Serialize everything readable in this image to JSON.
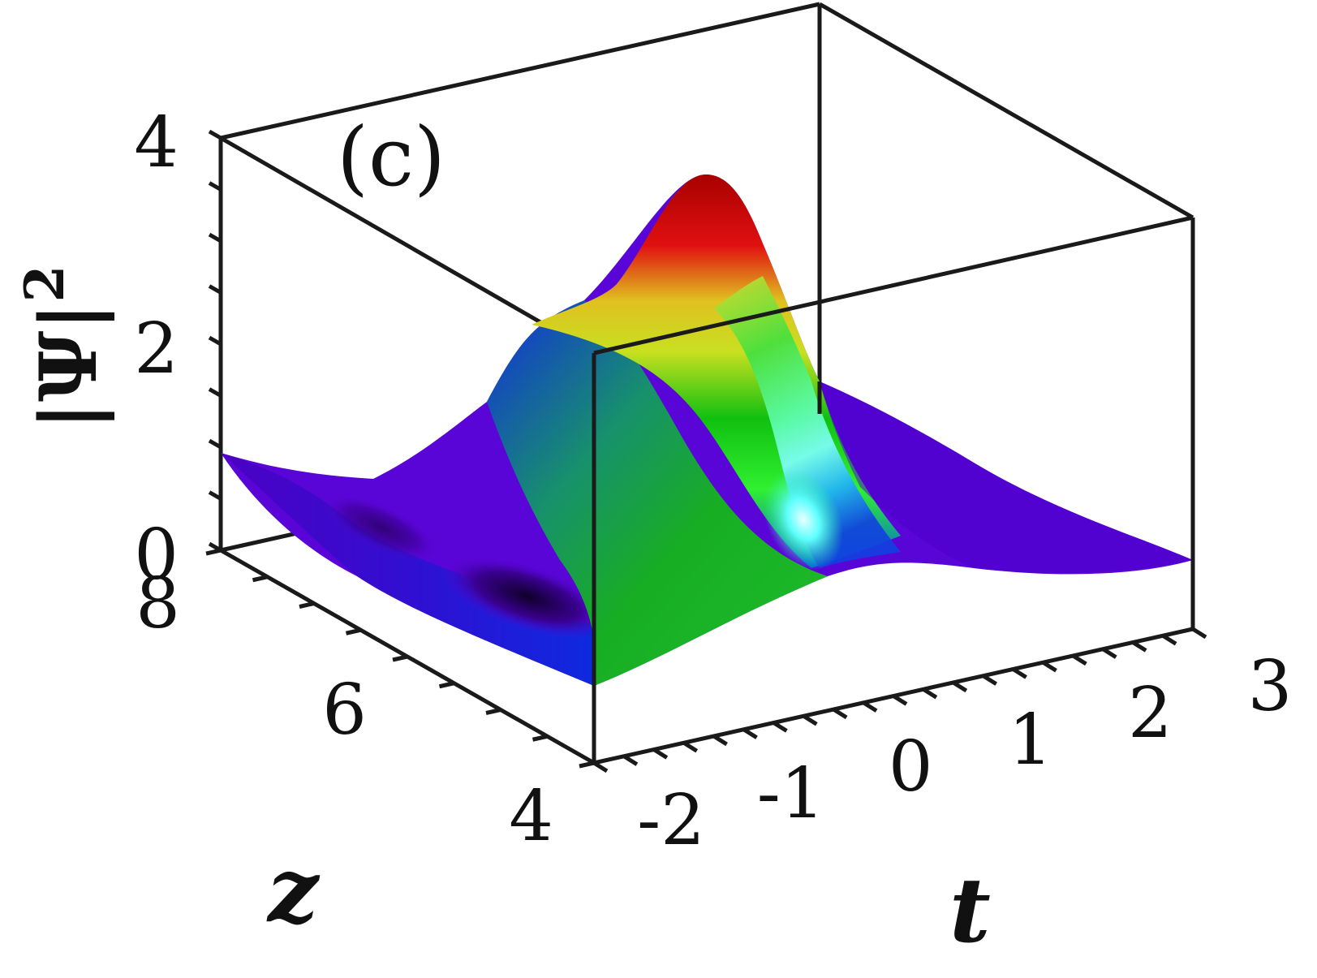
{
  "chart_data": {
    "type": "surface3d",
    "panel_label": "(c)",
    "zlabel": "|Ψ|²",
    "zlabel_base": "|Ψ|",
    "zlabel_sup": "2",
    "xlabel": "t",
    "ylabel": "z",
    "x_ticks": [
      "-2",
      "-1",
      "0",
      "1",
      "2",
      "3"
    ],
    "y_ticks": [
      "4",
      "6",
      "8"
    ],
    "z_ticks": [
      "0",
      "2",
      "4"
    ],
    "xlim": [
      -2,
      3
    ],
    "ylim": [
      4,
      8
    ],
    "zlim": [
      0,
      4
    ],
    "grid": false,
    "colormap": "hsv-like (blue → green → yellow → red)",
    "peak": {
      "t": 0.2,
      "z": 4.6,
      "value": 3.9
    },
    "colors": {
      "low": "#5a05d8",
      "mid": "#18d018",
      "high": "#d00000"
    }
  }
}
